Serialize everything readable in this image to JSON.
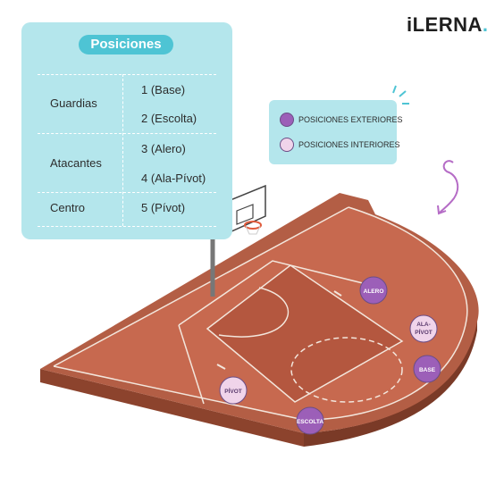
{
  "brand": {
    "logo_text": "iLERNA",
    "logo_dot": ".",
    "accent": "#4ec4d4"
  },
  "positions_table": {
    "title": "Posiciones",
    "rows": [
      {
        "group": "Guardias",
        "items": [
          "1 (Base)",
          "2 (Escolta)"
        ]
      },
      {
        "group": "Atacantes",
        "items": [
          "3 (Alero)",
          "4 (Ala-Pívot)"
        ]
      },
      {
        "group": "Centro",
        "items": [
          "5 (Pívot)"
        ]
      }
    ]
  },
  "legend": {
    "exterior": {
      "label": "POSICIONES EXTERIORES",
      "color": "#9c5fb8"
    },
    "interior": {
      "label": "POSICIONES INTERIORES",
      "color": "#f0d4ea"
    }
  },
  "court_markers": [
    {
      "label": "ALERO",
      "type": "exterior"
    },
    {
      "label": "ALA-",
      "label2": "PÍVOT",
      "type": "interior"
    },
    {
      "label": "BASE",
      "type": "exterior"
    },
    {
      "label": "ESCOLTA",
      "type": "exterior"
    },
    {
      "label": "PÍVOT",
      "type": "interior"
    }
  ],
  "colors": {
    "court": "#c7694f",
    "court_key": "#b4573f",
    "court_outer": "#b35e45",
    "court_side": "#8c432d",
    "panel": "#b4e6ec",
    "arrow": "#b56cc6"
  }
}
